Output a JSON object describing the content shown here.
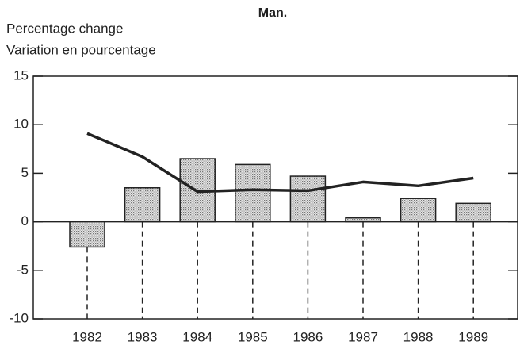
{
  "chart_data": {
    "type": "bar_line",
    "title": "Man.",
    "y_label_lines": [
      "Percentage change",
      "Variation en pourcentage"
    ],
    "categories": [
      "1982",
      "1983",
      "1984",
      "1985",
      "1986",
      "1987",
      "1988",
      "1989"
    ],
    "series": [
      {
        "type": "bar",
        "color": "#c8c8c8",
        "values": [
          -2.6,
          3.5,
          6.5,
          5.9,
          4.7,
          0.4,
          2.4,
          1.9
        ]
      },
      {
        "type": "line",
        "color": "#222222",
        "values": [
          9.1,
          6.7,
          3.1,
          3.3,
          3.2,
          4.1,
          3.7,
          4.5
        ]
      }
    ],
    "ylim": [
      -10,
      15
    ],
    "yticks": [
      -10,
      -5,
      0,
      5,
      10,
      15
    ],
    "grid": false
  }
}
